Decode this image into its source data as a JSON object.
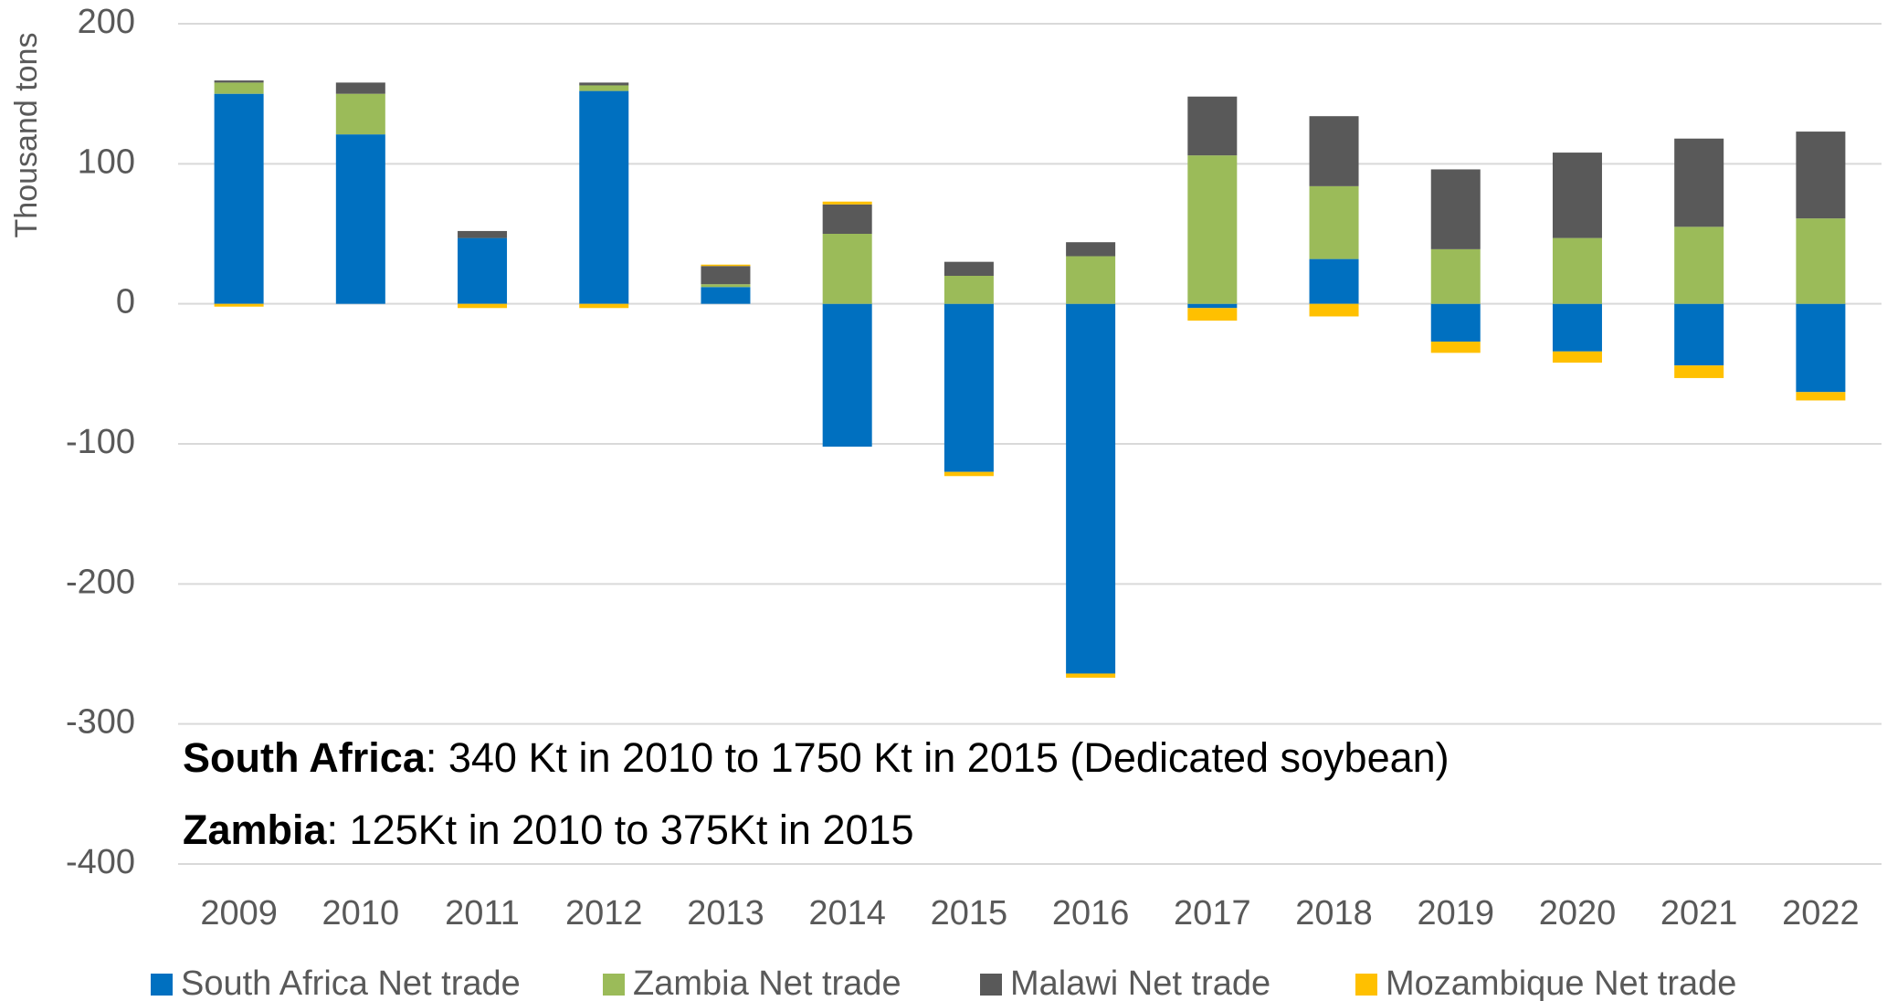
{
  "chart_data": {
    "type": "stacked_bar",
    "y_label": "Thousand tons",
    "categories": [
      "2009",
      "2010",
      "2011",
      "2012",
      "2013",
      "2014",
      "2015",
      "2016",
      "2017",
      "2018",
      "2019",
      "2020",
      "2021",
      "2022"
    ],
    "series": [
      {
        "name": "South Africa Net trade",
        "color": "#0070c0",
        "values": [
          150,
          121,
          47,
          152,
          12,
          -102,
          -120,
          -264,
          -3,
          32,
          -27,
          -34,
          -44,
          -63
        ]
      },
      {
        "name": "Zambia Net trade",
        "color": "#9bbb59",
        "values": [
          8,
          29,
          0,
          4,
          2,
          50,
          20,
          34,
          106,
          52,
          39,
          47,
          55,
          61
        ]
      },
      {
        "name": "Malawi Net trade",
        "color": "#595959",
        "values": [
          1.5,
          8,
          5,
          2,
          13,
          21,
          10,
          10,
          42,
          50,
          57,
          61,
          63,
          62
        ]
      },
      {
        "name": "Mozambique Net trade",
        "color": "#ffc000",
        "values": [
          -2,
          0,
          -3,
          -3,
          1,
          2,
          -3,
          -3,
          -9,
          -9,
          -8,
          -8,
          -9,
          -6
        ]
      }
    ],
    "ylim": [
      -400,
      200
    ],
    "yticks": [
      -400,
      -300,
      -200,
      -100,
      0,
      100,
      200
    ],
    "grid": true,
    "legend": "bottom",
    "annotations": [
      {
        "bold": "South Africa",
        "text": ": 340 Kt in 2010 to 1750 Kt in 2015 (Dedicated soybean)"
      },
      {
        "bold": "Zambia",
        "text": ": 125Kt in 2010 to 375Kt in 2015"
      }
    ]
  }
}
